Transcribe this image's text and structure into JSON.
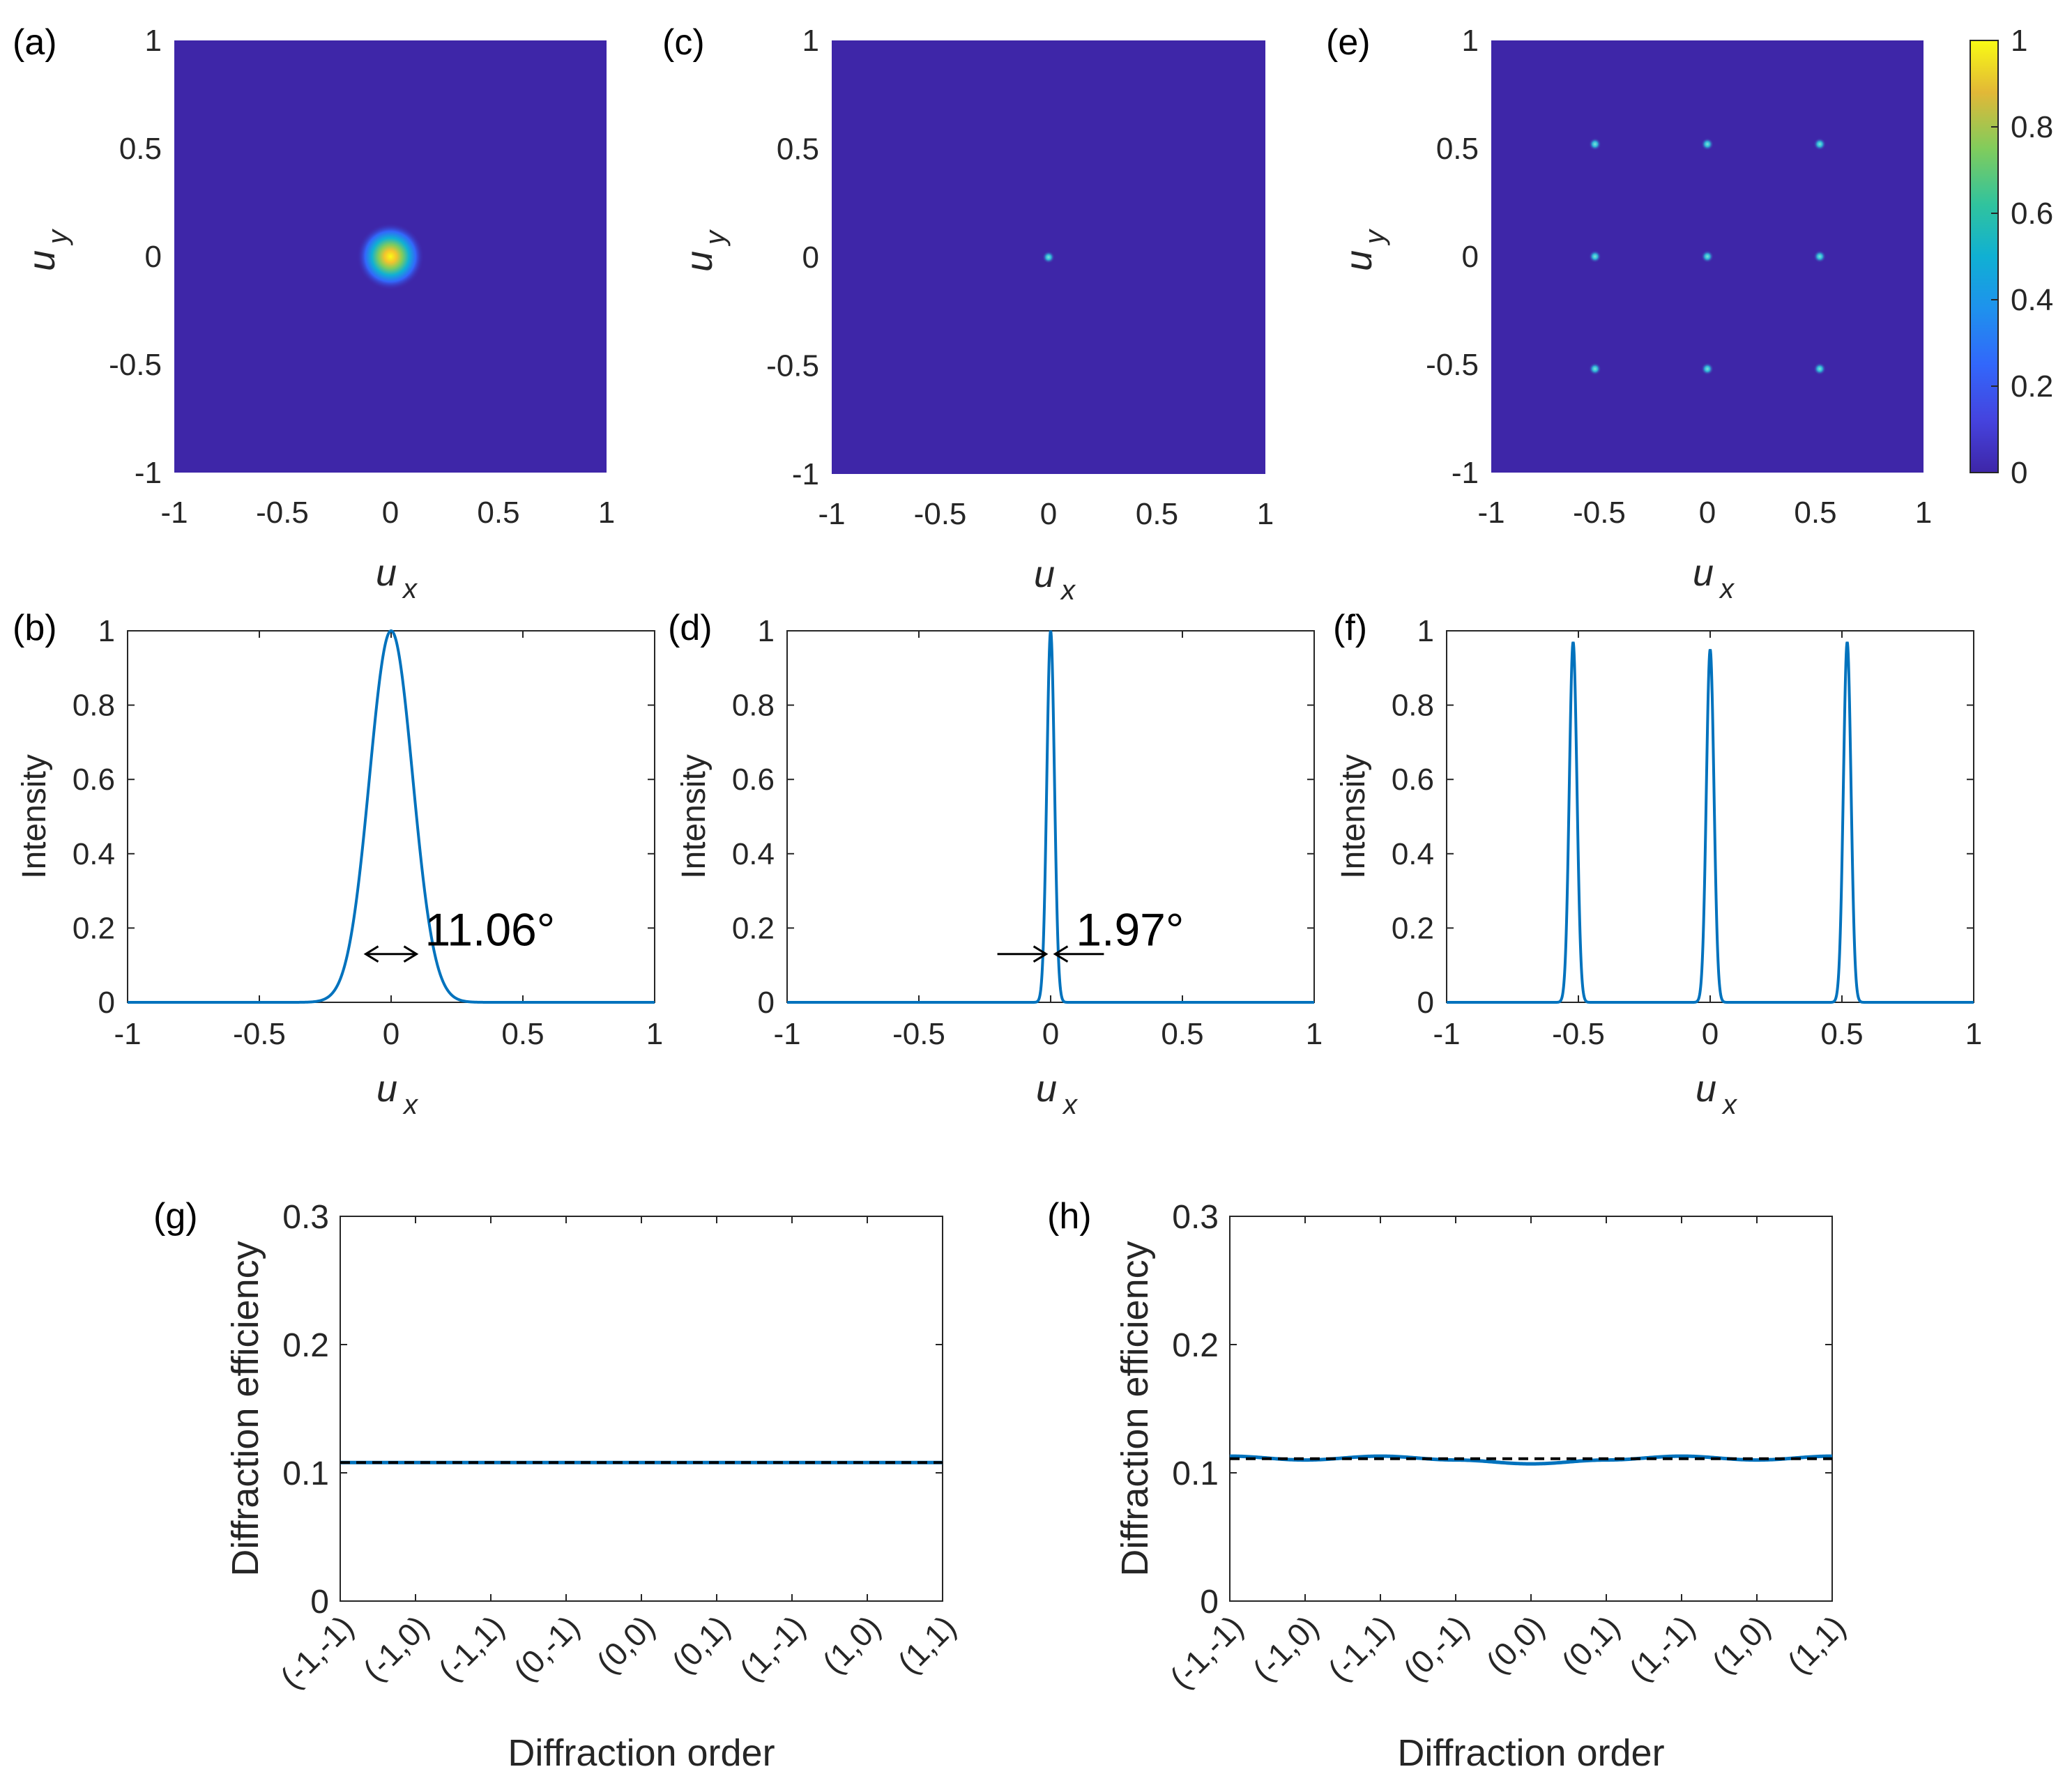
{
  "panel_labels": [
    "(a)",
    "(b)",
    "(c)",
    "(d)",
    "(e)",
    "(f)",
    "(g)",
    "(h)"
  ],
  "colors": {
    "map_background": "#3e26a8",
    "line": "#0072bd",
    "mean_line": "#000000",
    "axis": "#262626"
  },
  "colorbar": {
    "ticks": [
      "0",
      "0.2",
      "0.4",
      "0.6",
      "0.8",
      "1"
    ],
    "range": [
      0,
      1
    ]
  },
  "chart_data": [
    {
      "id": "a",
      "type": "heatmap",
      "label": "(a)",
      "xlabel": "u",
      "xlabel_sub": "x",
      "ylabel": "u",
      "ylabel_sub": "y",
      "xlim": [
        -1,
        1
      ],
      "ylim": [
        -1,
        1
      ],
      "xticks": [
        "-1",
        "-0.5",
        "0",
        "0.5",
        "1"
      ],
      "yticks": [
        "-1",
        "-0.5",
        "0",
        "0.5",
        "1"
      ],
      "spots": [
        {
          "x": 0,
          "y": 0,
          "intensity": 1,
          "sigma": 0.06
        }
      ]
    },
    {
      "id": "b",
      "type": "line",
      "label": "(b)",
      "xlabel": "u",
      "xlabel_sub": "x",
      "ylabel": "Intensity",
      "xlim": [
        -1,
        1
      ],
      "ylim": [
        0,
        1
      ],
      "xticks": [
        "-1",
        "-0.5",
        "0",
        "0.5",
        "1"
      ],
      "yticks": [
        "0",
        "0.2",
        "0.4",
        "0.6",
        "0.8",
        "1"
      ],
      "peaks": [
        {
          "center": 0,
          "height": 1,
          "fwhm": 0.193
        }
      ],
      "annotation": "11.06°",
      "annotation_y": 0.13
    },
    {
      "id": "c",
      "type": "heatmap",
      "label": "(c)",
      "xlabel": "u",
      "xlabel_sub": "x",
      "ylabel": "u",
      "ylabel_sub": "y",
      "xlim": [
        -1,
        1
      ],
      "ylim": [
        -1,
        1
      ],
      "xticks": [
        "-1",
        "-0.5",
        "0",
        "0.5",
        "1"
      ],
      "yticks": [
        "-1",
        "-0.5",
        "0",
        "0.5",
        "1"
      ],
      "spots": [
        {
          "x": 0,
          "y": 0,
          "intensity": 0.45,
          "sigma": 0.012
        }
      ]
    },
    {
      "id": "d",
      "type": "line",
      "label": "(d)",
      "xlabel": "u",
      "xlabel_sub": "x",
      "ylabel": "Intensity",
      "xlim": [
        -1,
        1
      ],
      "ylim": [
        0,
        1
      ],
      "xticks": [
        "-1",
        "-0.5",
        "0",
        "0.5",
        "1"
      ],
      "yticks": [
        "0",
        "0.2",
        "0.4",
        "0.6",
        "0.8",
        "1"
      ],
      "peaks": [
        {
          "center": 0,
          "height": 1,
          "fwhm": 0.034
        }
      ],
      "annotation": "1.97°",
      "annotation_y": 0.13
    },
    {
      "id": "e",
      "type": "heatmap",
      "label": "(e)",
      "xlabel": "u",
      "xlabel_sub": "x",
      "ylabel": "u",
      "ylabel_sub": "y",
      "xlim": [
        -1,
        1
      ],
      "ylim": [
        -1,
        1
      ],
      "xticks": [
        "-1",
        "-0.5",
        "0",
        "0.5",
        "1"
      ],
      "yticks": [
        "-1",
        "-0.5",
        "0",
        "0.5",
        "1"
      ],
      "spots": [
        {
          "x": -0.52,
          "y": 0.52,
          "intensity": 0.45,
          "sigma": 0.012
        },
        {
          "x": 0,
          "y": 0.52,
          "intensity": 0.45,
          "sigma": 0.012
        },
        {
          "x": 0.52,
          "y": 0.52,
          "intensity": 0.45,
          "sigma": 0.012
        },
        {
          "x": -0.52,
          "y": 0,
          "intensity": 0.45,
          "sigma": 0.012
        },
        {
          "x": 0,
          "y": 0,
          "intensity": 0.45,
          "sigma": 0.012
        },
        {
          "x": 0.52,
          "y": 0,
          "intensity": 0.45,
          "sigma": 0.012
        },
        {
          "x": -0.52,
          "y": -0.52,
          "intensity": 0.45,
          "sigma": 0.012
        },
        {
          "x": 0,
          "y": -0.52,
          "intensity": 0.45,
          "sigma": 0.012
        },
        {
          "x": 0.52,
          "y": -0.52,
          "intensity": 0.45,
          "sigma": 0.012
        }
      ]
    },
    {
      "id": "f",
      "type": "line",
      "label": "(f)",
      "xlabel": "u",
      "xlabel_sub": "x",
      "ylabel": "Intensity",
      "xlim": [
        -1,
        1
      ],
      "ylim": [
        0,
        1
      ],
      "xticks": [
        "-1",
        "-0.5",
        "0",
        "0.5",
        "1"
      ],
      "yticks": [
        "0",
        "0.2",
        "0.4",
        "0.6",
        "0.8",
        "1"
      ],
      "peaks": [
        {
          "center": -0.52,
          "height": 0.97,
          "fwhm": 0.034
        },
        {
          "center": 0,
          "height": 0.95,
          "fwhm": 0.034
        },
        {
          "center": 0.52,
          "height": 0.97,
          "fwhm": 0.034
        }
      ]
    },
    {
      "id": "g",
      "type": "line",
      "label": "(g)",
      "xlabel": "Diffraction order",
      "ylabel": "Diffraction efficiency",
      "ylim": [
        0,
        0.3
      ],
      "yticks": [
        "0",
        "0.1",
        "0.2",
        "0.3"
      ],
      "categories": [
        "(-1,-1)",
        "(-1,0)",
        "(-1,1)",
        "(0,-1)",
        "(0,0)",
        "(0,1)",
        "(1,-1)",
        "(1,0)",
        "(1,1)"
      ],
      "values": [
        0.108,
        0.108,
        0.108,
        0.108,
        0.108,
        0.108,
        0.108,
        0.108,
        0.108
      ],
      "mean": 0.108
    },
    {
      "id": "h",
      "type": "line",
      "label": "(h)",
      "xlabel": "Diffraction order",
      "ylabel": "Diffraction efficiency",
      "ylim": [
        0,
        0.3
      ],
      "yticks": [
        "0",
        "0.1",
        "0.2",
        "0.3"
      ],
      "categories": [
        "(-1,-1)",
        "(-1,0)",
        "(-1,1)",
        "(0,-1)",
        "(0,0)",
        "(0,1)",
        "(1,-1)",
        "(1,0)",
        "(1,1)"
      ],
      "values": [
        0.113,
        0.11,
        0.113,
        0.11,
        0.107,
        0.11,
        0.113,
        0.11,
        0.113
      ],
      "mean": 0.111
    }
  ]
}
